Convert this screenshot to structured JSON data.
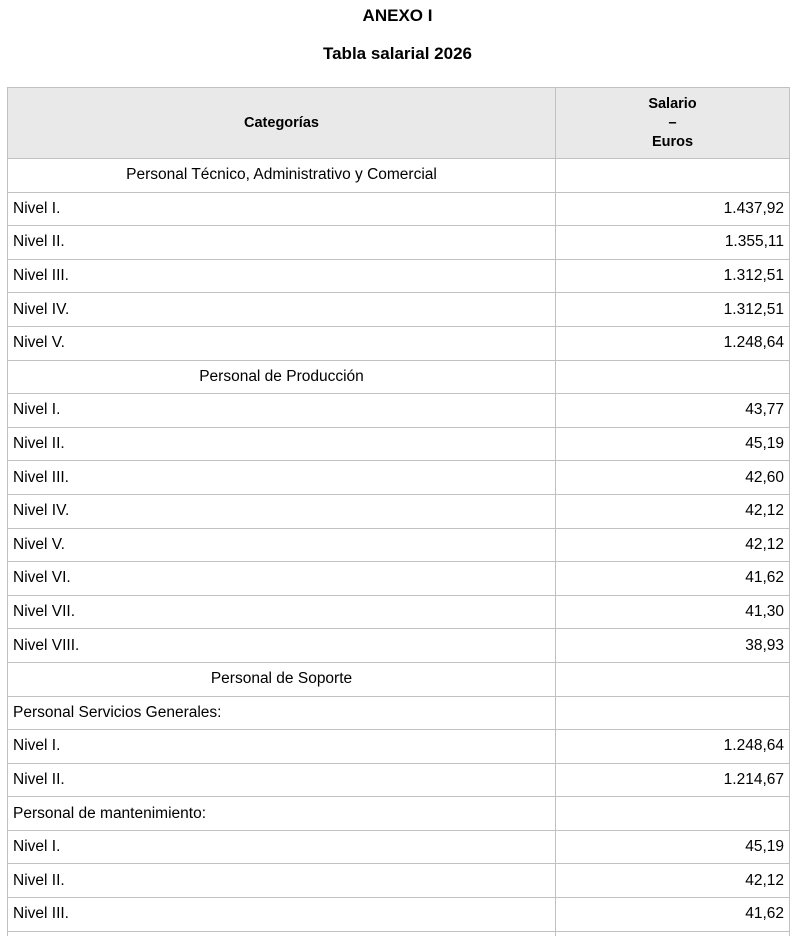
{
  "document": {
    "title": "ANEXO I",
    "subtitle": "Tabla salarial 2026"
  },
  "table": {
    "header": {
      "categories_label": "Categorías",
      "salary_label_lines": [
        "Salario",
        "–",
        "Euros"
      ]
    },
    "rows": [
      {
        "type": "section",
        "label": "Personal Técnico, Administrativo y Comercial",
        "value": ""
      },
      {
        "type": "data",
        "label": "Nivel I.",
        "value": "1.437,92"
      },
      {
        "type": "data",
        "label": "Nivel II.",
        "value": "1.355,11"
      },
      {
        "type": "data",
        "label": "Nivel III.",
        "value": "1.312,51"
      },
      {
        "type": "data",
        "label": "Nivel IV.",
        "value": "1.312,51"
      },
      {
        "type": "data",
        "label": "Nivel V.",
        "value": "1.248,64"
      },
      {
        "type": "section",
        "label": "Personal de Producción",
        "value": ""
      },
      {
        "type": "data",
        "label": "Nivel I.",
        "value": "43,77"
      },
      {
        "type": "data",
        "label": "Nivel II.",
        "value": "45,19"
      },
      {
        "type": "data",
        "label": "Nivel III.",
        "value": "42,60"
      },
      {
        "type": "data",
        "label": "Nivel IV.",
        "value": "42,12"
      },
      {
        "type": "data",
        "label": "Nivel V.",
        "value": "42,12"
      },
      {
        "type": "data",
        "label": "Nivel VI.",
        "value": "41,62"
      },
      {
        "type": "data",
        "label": "Nivel VII.",
        "value": "41,30"
      },
      {
        "type": "data",
        "label": "Nivel VIII.",
        "value": "38,93"
      },
      {
        "type": "section",
        "label": "Personal de Soporte",
        "value": ""
      },
      {
        "type": "subsection",
        "label": "Personal Servicios Generales:",
        "value": ""
      },
      {
        "type": "data",
        "label": "Nivel I.",
        "value": "1.248,64"
      },
      {
        "type": "data",
        "label": "Nivel II.",
        "value": "1.214,67"
      },
      {
        "type": "subsection",
        "label": "Personal de mantenimiento:",
        "value": ""
      },
      {
        "type": "data",
        "label": "Nivel I.",
        "value": "45,19"
      },
      {
        "type": "data",
        "label": "Nivel II.",
        "value": "42,12"
      },
      {
        "type": "data",
        "label": "Nivel III.",
        "value": "41,62"
      },
      {
        "type": "partial",
        "label": "",
        "value": ""
      }
    ]
  },
  "colors": {
    "page_bg": "#ffffff",
    "header_bg": "#e9e9e9",
    "border": "#c1c1c1",
    "text": "#000000"
  }
}
